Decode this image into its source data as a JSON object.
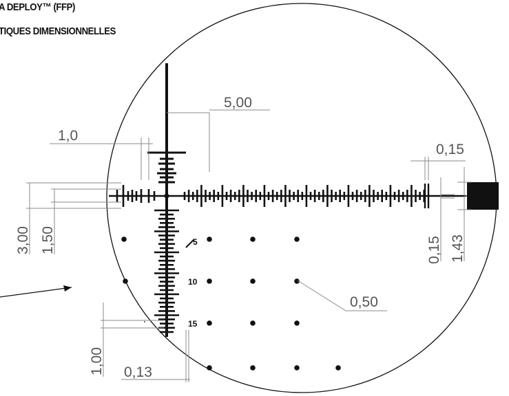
{
  "header": {
    "line1": "A DEPLOY™ (FFP)",
    "line2": "TIQUES DIMENSIONNELLES"
  },
  "dimensions": {
    "center_spacing": "5,00",
    "hash_spacing": "1,0",
    "line_width_right": "0,15",
    "left_outer_height": "3,00",
    "left_inner_height": "1,50",
    "right_line_thickness": "0,15",
    "right_post_height": "1,43",
    "dot_size": "0,50",
    "lower_hash_spacing": "1,00",
    "tick_thickness": "0,13"
  },
  "holdover_labels": [
    "5",
    "10",
    "15"
  ],
  "colors": {
    "reticle": "#111111",
    "dimension_line": "#8a8a8a",
    "dimension_text": "#555555"
  }
}
